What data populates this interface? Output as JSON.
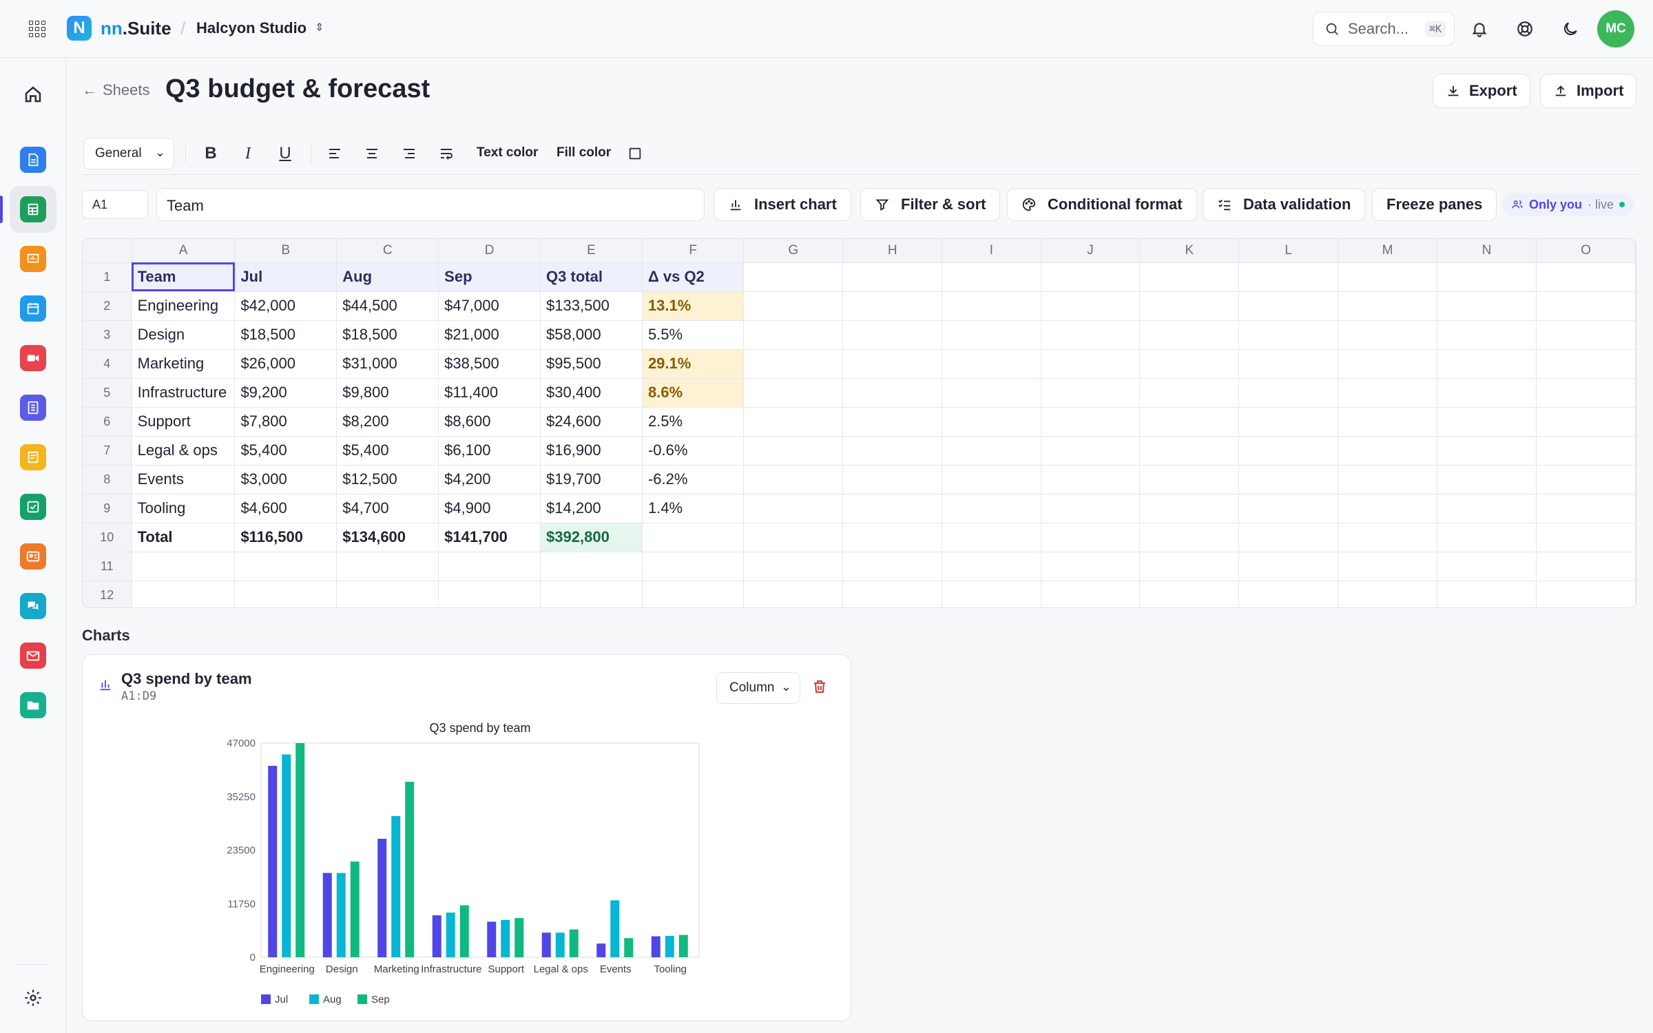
{
  "app": {
    "brand_mark": "N",
    "brand_prefix": "nn",
    "brand_suffix": ".Suite",
    "workspace": "Halcyon Studio",
    "search_placeholder": "Search...",
    "search_shortcut": "⌘K",
    "avatar_initials": "MC"
  },
  "header": {
    "back_label": "Sheets",
    "title": "Q3 budget & forecast",
    "export_label": "Export",
    "import_label": "Import"
  },
  "format_toolbar": {
    "number_format": "General",
    "text_color_label": "Text color",
    "fill_color_label": "Fill color"
  },
  "formula_bar": {
    "cell_ref": "A1",
    "value": "Team",
    "insert_chart_label": "Insert chart",
    "filter_sort_label": "Filter & sort",
    "conditional_format_label": "Conditional format",
    "data_validation_label": "Data validation",
    "freeze_panes_label": "Freeze panes",
    "presence_label": "Only you",
    "presence_status": "· live"
  },
  "sheet": {
    "columns": [
      "A",
      "B",
      "C",
      "D",
      "E",
      "F",
      "G",
      "H",
      "I",
      "J",
      "K",
      "L",
      "M",
      "N",
      "O"
    ],
    "rows": [
      [
        "Team",
        "Jul",
        "Aug",
        "Sep",
        "Q3 total",
        "Δ vs Q2"
      ],
      [
        "Engineering",
        "$42,000",
        "$44,500",
        "$47,000",
        "$133,500",
        "13.1%"
      ],
      [
        "Design",
        "$18,500",
        "$18,500",
        "$21,000",
        "$58,000",
        "5.5%"
      ],
      [
        "Marketing",
        "$26,000",
        "$31,000",
        "$38,500",
        "$95,500",
        "29.1%"
      ],
      [
        "Infrastructure",
        "$9,200",
        "$9,800",
        "$11,400",
        "$30,400",
        "8.6%"
      ],
      [
        "Support",
        "$7,800",
        "$8,200",
        "$8,600",
        "$24,600",
        "2.5%"
      ],
      [
        "Legal & ops",
        "$5,400",
        "$5,400",
        "$6,100",
        "$16,900",
        "-0.6%"
      ],
      [
        "Events",
        "$3,000",
        "$12,500",
        "$4,200",
        "$19,700",
        "-6.2%"
      ],
      [
        "Tooling",
        "$4,600",
        "$4,700",
        "$4,900",
        "$14,200",
        "1.4%"
      ],
      [
        "Total",
        "$116,500",
        "$134,600",
        "$141,700",
        "$392,800",
        ""
      ],
      [
        "",
        "",
        "",
        "",
        "",
        ""
      ],
      [
        "",
        "",
        "",
        "",
        "",
        ""
      ]
    ],
    "highlighted_cells": [
      "F2",
      "F4",
      "F5"
    ],
    "selected_cell": "A1"
  },
  "charts_section": {
    "heading": "Charts",
    "card_title": "Q3 spend by team",
    "card_range": "A1:D9",
    "chart_type_label": "Column"
  },
  "colors": {
    "accent": "#4f46e5",
    "jul": "#4f46e5",
    "aug": "#06b6d4",
    "sep": "#10b981",
    "highlight_fill": "#fdf3d4",
    "total_fill": "#e6f6ee"
  },
  "chart_data": {
    "type": "bar",
    "title": "Q3 spend by team",
    "categories": [
      "Engineering",
      "Design",
      "Marketing",
      "Infrastructure",
      "Support",
      "Legal & ops",
      "Events",
      "Tooling"
    ],
    "series": [
      {
        "name": "Jul",
        "values": [
          42000,
          18500,
          26000,
          9200,
          7800,
          5400,
          3000,
          4600
        ]
      },
      {
        "name": "Aug",
        "values": [
          44500,
          18500,
          31000,
          9800,
          8200,
          5400,
          12500,
          4700
        ]
      },
      {
        "name": "Sep",
        "values": [
          47000,
          21000,
          38500,
          11400,
          8600,
          6100,
          4200,
          4900
        ]
      }
    ],
    "yticks": [
      0,
      11750,
      23500,
      35250,
      47000
    ],
    "ylim": [
      0,
      47000
    ],
    "legend_position": "bottom"
  }
}
